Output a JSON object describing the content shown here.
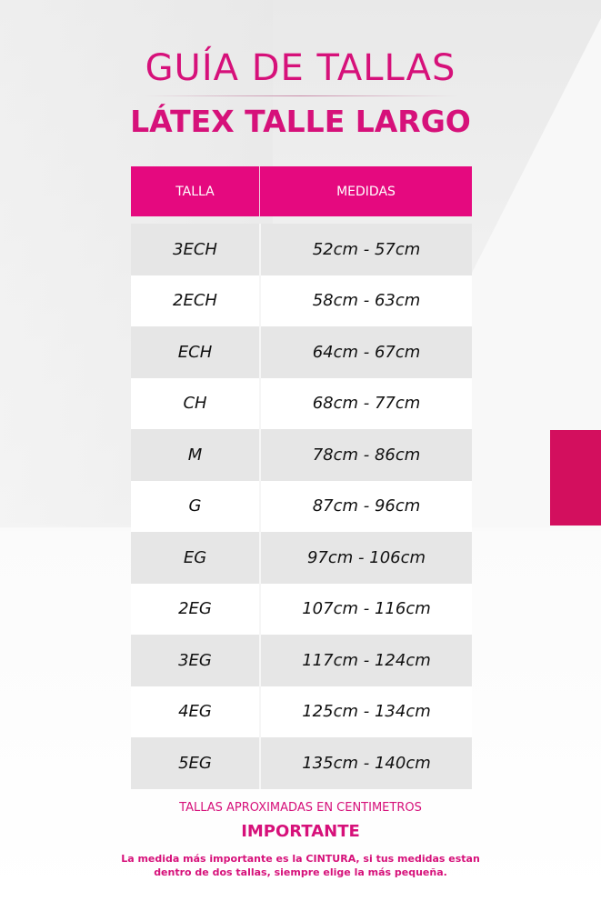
{
  "header": {
    "title": "GUÍA DE TALLAS",
    "subtitle": "LÁTEX TALLE LARGO"
  },
  "table": {
    "columns": [
      "TALLA",
      "MEDIDAS"
    ],
    "rows": [
      {
        "size": "3ECH",
        "range": "52cm - 57cm"
      },
      {
        "size": "2ECH",
        "range": "58cm - 63cm"
      },
      {
        "size": "ECH",
        "range": "64cm - 67cm"
      },
      {
        "size": "CH",
        "range": "68cm - 77cm"
      },
      {
        "size": "M",
        "range": "78cm - 86cm"
      },
      {
        "size": "G",
        "range": "87cm - 96cm"
      },
      {
        "size": "EG",
        "range": "97cm - 106cm"
      },
      {
        "size": "2EG",
        "range": "107cm - 116cm"
      },
      {
        "size": "3EG",
        "range": "117cm - 124cm"
      },
      {
        "size": "4EG",
        "range": "125cm - 134cm"
      },
      {
        "size": "5EG",
        "range": "135cm - 140cm"
      }
    ]
  },
  "footer": {
    "note": "TALLAS APROXIMADAS EN CENTIMETROS",
    "heading": "IMPORTANTE",
    "line1": "La medida más importante es la CINTURA, si tus medidas estan",
    "line2": "dentro de dos tallas, siempre elige la más pequeña."
  },
  "colors": {
    "accent": "#e5097f",
    "block": "#d30f5e",
    "row_alt": "#e6e6e6"
  }
}
